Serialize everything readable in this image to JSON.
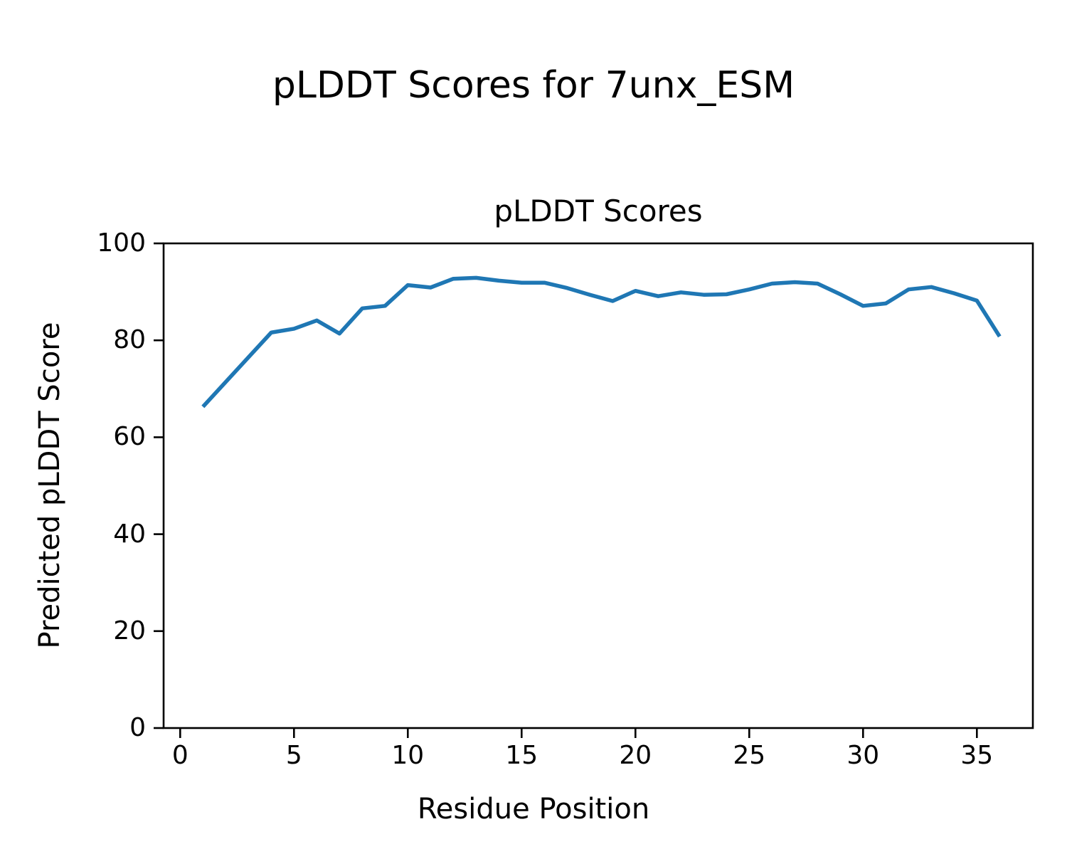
{
  "figure_title": "pLDDT Scores for 7unx_ESM",
  "axes_title": "pLDDT Scores",
  "x_axis_label": "Residue Position",
  "y_axis_label": "Predicted pLDDT Score",
  "line_color": "#1f77b4",
  "axis_color": "#000000",
  "background_color": "#ffffff",
  "chart_data": {
    "type": "line",
    "title": "pLDDT Scores",
    "xlabel": "Residue Position",
    "ylabel": "Predicted pLDDT Score",
    "series": [
      {
        "name": "pLDDT",
        "x": [
          1,
          2,
          3,
          4,
          5,
          6,
          7,
          8,
          9,
          10,
          11,
          12,
          13,
          14,
          15,
          16,
          17,
          18,
          19,
          20,
          21,
          22,
          23,
          24,
          25,
          26,
          27,
          28,
          29,
          30,
          31,
          32,
          33,
          34,
          35,
          36
        ],
        "y": [
          66.3,
          71.4,
          76.5,
          81.6,
          82.4,
          84.1,
          81.4,
          86.6,
          87.1,
          91.4,
          90.9,
          92.7,
          92.9,
          92.3,
          91.9,
          91.9,
          90.8,
          89.4,
          88.1,
          90.2,
          89.1,
          89.9,
          89.4,
          89.5,
          90.5,
          91.7,
          92.0,
          91.7,
          89.5,
          87.1,
          87.6,
          90.5,
          91.0,
          89.7,
          88.2,
          80.8
        ]
      }
    ],
    "xticks": [
      0,
      5,
      10,
      15,
      20,
      25,
      30,
      35
    ],
    "yticks": [
      0,
      20,
      40,
      60,
      80,
      100
    ],
    "xlim": [
      -0.73,
      37.46
    ],
    "ylim": [
      0,
      100
    ],
    "grid": false,
    "legend": null
  }
}
